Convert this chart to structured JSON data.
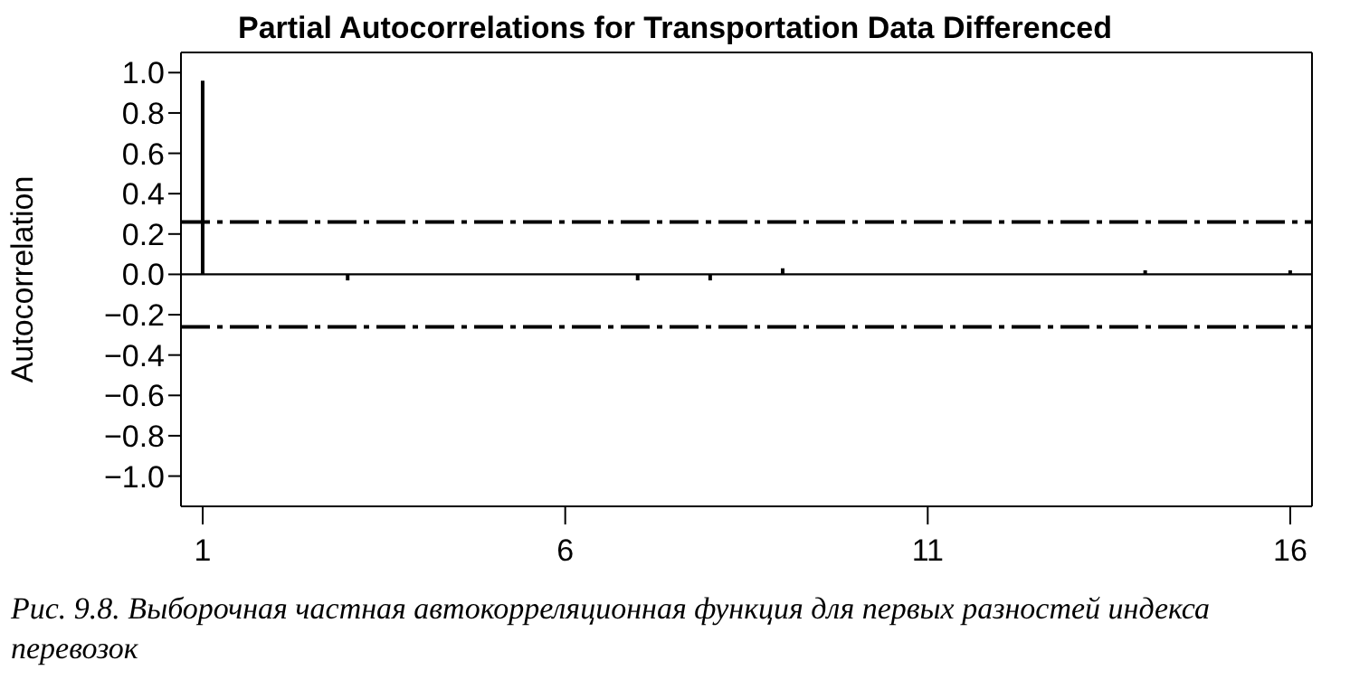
{
  "chart_data": {
    "type": "bar",
    "title": "Partial Autocorrelations for Transportation Data Differenced",
    "ylabel": "Autocorrelation",
    "x": [
      1,
      2,
      3,
      4,
      5,
      6,
      7,
      8,
      9,
      10,
      11,
      12,
      13,
      14,
      15,
      16
    ],
    "values": [
      0.96,
      null,
      -0.03,
      null,
      null,
      null,
      -0.03,
      -0.03,
      0.03,
      null,
      null,
      null,
      null,
      0.02,
      null,
      0.02
    ],
    "color": "#000000",
    "xlim": [
      0.7,
      16.3
    ],
    "xticks": [
      1,
      6,
      11,
      16
    ],
    "ylim": [
      -1.15,
      1.1
    ],
    "yticks": [
      {
        "value": -1,
        "label": "−1.0"
      },
      {
        "value": -0.8,
        "label": "−0.8"
      },
      {
        "value": -0.6,
        "label": "−0.6"
      },
      {
        "value": -0.4,
        "label": "−0.4"
      },
      {
        "value": -0.2,
        "label": "−0.2"
      },
      {
        "value": 0,
        "label": "0.0"
      },
      {
        "value": 0.2,
        "label": "0.2"
      },
      {
        "value": 0.4,
        "label": "0.4"
      },
      {
        "value": 0.6,
        "label": "0.6"
      },
      {
        "value": 0.8,
        "label": "0.8"
      },
      {
        "value": 1,
        "label": "1.0"
      }
    ],
    "ref_lines": [
      {
        "axis": "y",
        "value": 0.26,
        "line_style": "dashed"
      },
      {
        "axis": "y",
        "value": -0.26,
        "line_style": "dashed"
      },
      {
        "axis": "y",
        "value": 0,
        "line_style": "solid"
      }
    ],
    "grid": false,
    "legend": false,
    "annotations": [
      "Рис. 9.8. Выборочная частная автокорреляционная функция для первых разностей индекса перевозок"
    ]
  }
}
